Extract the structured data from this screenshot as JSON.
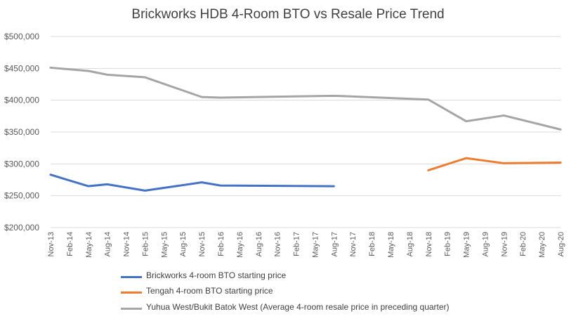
{
  "chart_data": {
    "type": "line",
    "title": "Brickworks HDB 4-Room BTO vs Resale Price Trend",
    "xlabel": "",
    "ylabel": "",
    "ylim": [
      200000,
      500000
    ],
    "yticks": [
      200000,
      250000,
      300000,
      350000,
      400000,
      450000,
      500000
    ],
    "ytick_labels": [
      "$200,000",
      "$250,000",
      "$300,000",
      "$350,000",
      "$400,000",
      "$450,000",
      "$500,000"
    ],
    "categories": [
      "Nov-13",
      "Feb-14",
      "May-14",
      "Aug-14",
      "Nov-14",
      "Feb-15",
      "May-15",
      "Aug-15",
      "Nov-15",
      "Feb-16",
      "May-16",
      "Aug-16",
      "Nov-16",
      "Feb-17",
      "May-17",
      "Aug-17",
      "Nov-17",
      "Feb-18",
      "May-18",
      "Aug-18",
      "Nov-18",
      "Feb-19",
      "May-19",
      "Aug-19",
      "Nov-19",
      "Feb-20",
      "May-20",
      "Aug-20"
    ],
    "grid": true,
    "legend_position": "bottom",
    "series": [
      {
        "name": "Brickworks 4-room BTO starting price",
        "color": "#4472c4",
        "values": [
          283000,
          null,
          265000,
          268000,
          null,
          258000,
          null,
          null,
          271000,
          266000,
          null,
          null,
          null,
          null,
          null,
          265000,
          null,
          null,
          null,
          null,
          null,
          null,
          null,
          null,
          null,
          null,
          null,
          null
        ]
      },
      {
        "name": "Tengah 4-room BTO starting price",
        "color": "#ed7d31",
        "values": [
          null,
          null,
          null,
          null,
          null,
          null,
          null,
          null,
          null,
          null,
          null,
          null,
          null,
          null,
          null,
          null,
          null,
          null,
          null,
          null,
          290000,
          null,
          309000,
          null,
          301000,
          null,
          null,
          302000
        ]
      },
      {
        "name": "Yuhua West/Bukit Batok West (Average 4-room resale price in preceding quarter)",
        "color": "#a5a5a5",
        "values": [
          451000,
          null,
          446000,
          440000,
          null,
          436000,
          null,
          null,
          405000,
          404000,
          null,
          null,
          null,
          null,
          null,
          407000,
          null,
          null,
          null,
          null,
          401000,
          null,
          367000,
          null,
          376000,
          null,
          null,
          354000
        ]
      }
    ]
  }
}
